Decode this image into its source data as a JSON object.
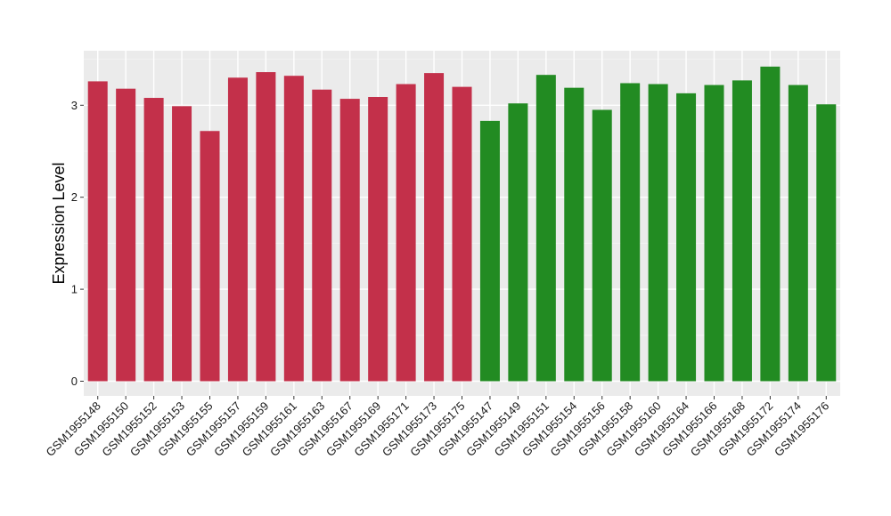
{
  "chart_data": {
    "type": "bar",
    "ylabel": "Expression Level",
    "xlabel": "",
    "ylim": [
      0,
      3.6
    ],
    "yticks": [
      0,
      1,
      2,
      3
    ],
    "grid": true,
    "legend": "none",
    "background": "#EBEBEB",
    "categories": [
      "GSM1955148",
      "GSM1955150",
      "GSM1955152",
      "GSM1955153",
      "GSM1955155",
      "GSM1955157",
      "GSM1955159",
      "GSM1955161",
      "GSM1955163",
      "GSM1955167",
      "GSM1955169",
      "GSM1955171",
      "GSM1955173",
      "GSM1955175",
      "GSM1955147",
      "GSM1955149",
      "GSM1955151",
      "GSM1955154",
      "GSM1955156",
      "GSM1955158",
      "GSM1955160",
      "GSM1955164",
      "GSM1955166",
      "GSM1955168",
      "GSM1955172",
      "GSM1955174",
      "GSM1955176"
    ],
    "values": [
      3.26,
      3.18,
      3.08,
      2.99,
      2.72,
      3.3,
      3.36,
      3.32,
      3.17,
      3.07,
      3.09,
      3.23,
      3.35,
      3.2,
      2.83,
      3.02,
      3.33,
      3.19,
      2.95,
      3.24,
      3.23,
      3.13,
      3.22,
      3.27,
      3.42,
      3.22,
      3.01
    ],
    "colors": [
      "#C3304A",
      "#C3304A",
      "#C3304A",
      "#C3304A",
      "#C3304A",
      "#C3304A",
      "#C3304A",
      "#C3304A",
      "#C3304A",
      "#C3304A",
      "#C3304A",
      "#C3304A",
      "#C3304A",
      "#C3304A",
      "#228B22",
      "#228B22",
      "#228B22",
      "#228B22",
      "#228B22",
      "#228B22",
      "#228B22",
      "#228B22",
      "#228B22",
      "#228B22",
      "#228B22",
      "#228B22",
      "#228B22"
    ]
  }
}
